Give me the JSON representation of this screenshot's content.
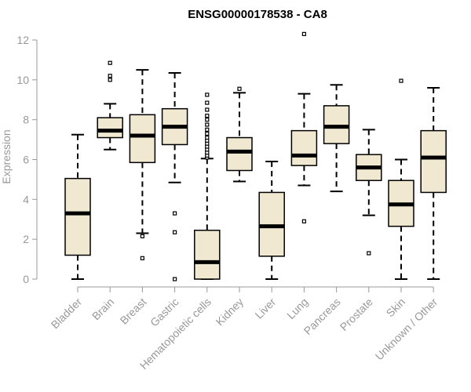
{
  "chart_data": {
    "type": "boxplot",
    "title": "ENSG00000178538 - CA8",
    "xlabel": "",
    "ylabel": "Expression",
    "ylim": [
      0,
      12
    ],
    "yticks": [
      0,
      2,
      4,
      6,
      8,
      10,
      12
    ],
    "categories": [
      "Bladder",
      "Brain",
      "Breast",
      "Gastric",
      "Hematopoietic cells",
      "Kidney",
      "Liver",
      "Lung",
      "Pancreas",
      "Prostate",
      "Skin",
      "Unknown / Other"
    ],
    "boxes": [
      {
        "name": "Bladder",
        "whisker_low": 0.0,
        "q1": 1.2,
        "median": 3.3,
        "q3": 5.05,
        "whisker_high": 7.25,
        "outliers": []
      },
      {
        "name": "Brain",
        "whisker_low": 6.5,
        "q1": 7.1,
        "median": 7.45,
        "q3": 8.1,
        "whisker_high": 8.8,
        "outliers": [
          10.0,
          10.2,
          10.85
        ]
      },
      {
        "name": "Breast",
        "whisker_low": 2.3,
        "q1": 5.85,
        "median": 7.2,
        "q3": 8.25,
        "whisker_high": 10.5,
        "outliers": [
          1.05,
          2.15
        ]
      },
      {
        "name": "Gastric",
        "whisker_low": 4.85,
        "q1": 6.75,
        "median": 7.65,
        "q3": 8.55,
        "whisker_high": 10.35,
        "outliers": [
          0.0,
          2.35,
          3.3
        ]
      },
      {
        "name": "Hematopoietic cells",
        "whisker_low": 0.0,
        "q1": 0.0,
        "median": 0.85,
        "q3": 2.45,
        "whisker_high": 6.05,
        "outliers": [
          6.1,
          6.2,
          6.35,
          6.5,
          6.65,
          6.8,
          6.95,
          7.1,
          7.3,
          7.5,
          7.75,
          8.0,
          8.2,
          8.5,
          8.85,
          9.25
        ]
      },
      {
        "name": "Kidney",
        "whisker_low": 4.9,
        "q1": 5.45,
        "median": 6.4,
        "q3": 7.1,
        "whisker_high": 9.35,
        "outliers": [
          9.55
        ]
      },
      {
        "name": "Liver",
        "whisker_low": 0.0,
        "q1": 1.15,
        "median": 2.65,
        "q3": 4.35,
        "whisker_high": 5.9,
        "outliers": []
      },
      {
        "name": "Lung",
        "whisker_low": 4.7,
        "q1": 5.7,
        "median": 6.2,
        "q3": 7.45,
        "whisker_high": 9.3,
        "outliers": [
          2.9,
          12.3
        ]
      },
      {
        "name": "Pancreas",
        "whisker_low": 4.4,
        "q1": 6.8,
        "median": 7.65,
        "q3": 8.7,
        "whisker_high": 9.75,
        "outliers": []
      },
      {
        "name": "Prostate",
        "whisker_low": 3.2,
        "q1": 4.95,
        "median": 5.6,
        "q3": 6.25,
        "whisker_high": 7.5,
        "outliers": [
          1.3
        ]
      },
      {
        "name": "Skin",
        "whisker_low": 0.0,
        "q1": 2.65,
        "median": 3.75,
        "q3": 4.95,
        "whisker_high": 6.0,
        "outliers": [
          9.95
        ]
      },
      {
        "name": "Unknown / Other",
        "whisker_low": 0.0,
        "q1": 4.35,
        "median": 6.1,
        "q3": 7.45,
        "whisker_high": 9.6,
        "outliers": []
      }
    ],
    "box_fill": "#f0e8d0",
    "box_stroke": "#000000",
    "axis_color": "#999999",
    "grid": false,
    "legend": "none"
  }
}
